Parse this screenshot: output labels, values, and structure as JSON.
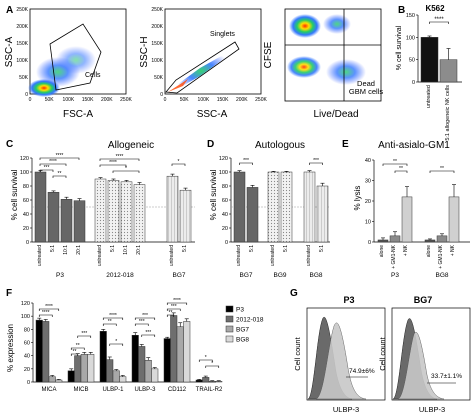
{
  "panels": {
    "A": {
      "letter": "A",
      "plot1": {
        "ylabel": "SSC-A",
        "xlabel": "FSC-A",
        "gate": "Cells",
        "yticks": [
          "250K",
          "200K",
          "150K",
          "100K",
          "50K",
          "0"
        ],
        "xticks": [
          "0",
          "50K",
          "100K",
          "150K",
          "200K",
          "250K"
        ]
      },
      "plot2": {
        "ylabel": "SSC-H",
        "xlabel": "SSC-A",
        "gate": "Singlets",
        "yticks": [
          "250K",
          "200K",
          "150K",
          "100K",
          "50K",
          "0"
        ],
        "xticks": [
          "0",
          "50K",
          "100K",
          "150K",
          "200K",
          "250K"
        ]
      },
      "plot3": {
        "ylabel": "CFSE",
        "xlabel": "Live/Dead",
        "gate": "Dead\nGBM cells"
      }
    },
    "B": {
      "letter": "B",
      "title": "K562",
      "ylabel": "% cell survival",
      "sig": "****",
      "yticks": [
        "0",
        "50",
        "100",
        "150"
      ],
      "categories": [
        "untreated",
        "5:1 allogeneic NK cells"
      ]
    },
    "C": {
      "letter": "C",
      "title": "Allogeneic",
      "ylabel": "% cell survival",
      "yticks": [
        "0",
        "20",
        "40",
        "60",
        "80",
        "100",
        "120"
      ],
      "groups": [
        "P3",
        "2012-018",
        "BG7"
      ],
      "xlabels": [
        "untreated",
        "5:1",
        "10:1",
        "20:1",
        "untreated",
        "5:1",
        "10:1",
        "20:1",
        "untreated",
        "5:1"
      ],
      "sigs": [
        "****",
        "****",
        "***",
        "**",
        "****",
        "****",
        "*",
        "*"
      ]
    },
    "D": {
      "letter": "D",
      "title": "Autologous",
      "ylabel": "% cell survival",
      "yticks": [
        "0",
        "20",
        "40",
        "60",
        "80",
        "100",
        "120"
      ],
      "groups": [
        "BG7",
        "BG9",
        "BG8"
      ],
      "xlabels": [
        "untreated",
        "5:1",
        "untreated",
        "5:1",
        "untreated",
        "5:1"
      ],
      "sigs": [
        "***",
        "***"
      ]
    },
    "E": {
      "letter": "E",
      "title": "Anti-asialo-GM1",
      "ylabel": "% lysis",
      "yticks": [
        "0",
        "10",
        "20",
        "30",
        "40"
      ],
      "groups": [
        "P3",
        "BG8"
      ],
      "xlabels": [
        "alone",
        "+ GM1-NK",
        "+ NK",
        "alone",
        "+ GM1-NK",
        "+ NK"
      ],
      "sigs": [
        "**",
        "**",
        "**"
      ]
    },
    "F": {
      "letter": "F",
      "ylabel": "% expression",
      "yticks": [
        "0",
        "20",
        "40",
        "60",
        "80",
        "100",
        "120"
      ],
      "markers": [
        "MICA",
        "MICB",
        "ULBP-1",
        "ULBP-3",
        "CD112",
        "TRAIL-R2"
      ],
      "legend": [
        "P3",
        "2012-018",
        "BG7",
        "BG8"
      ],
      "sigs": [
        "****",
        "****",
        "**",
        "**",
        "***",
        "****",
        "**",
        "*",
        "***",
        "***",
        "***",
        "****",
        "***",
        "**",
        "*",
        "*"
      ]
    },
    "G": {
      "letter": "G",
      "p3": {
        "title": "P3",
        "ylabel": "Cell count",
        "xlabel": "ULBP-3",
        "pct": "74.9±6%"
      },
      "bg7": {
        "title": "BG7",
        "ylabel": "Cell count",
        "xlabel": "ULBP-3",
        "pct": "33.7±1.1%"
      }
    }
  },
  "chart_data": [
    {
      "panel": "B",
      "type": "bar",
      "title": "K562",
      "ylabel": "% cell survival",
      "ylim": [
        0,
        150
      ],
      "categories": [
        "untreated",
        "5:1 allogeneic NK cells"
      ],
      "values": [
        100,
        50
      ],
      "errors": [
        3,
        25
      ],
      "colors": [
        "#111111",
        "#8c8c8c"
      ]
    },
    {
      "panel": "C",
      "type": "bar",
      "title": "Allogeneic",
      "ylabel": "% cell survival",
      "ylim": [
        0,
        120
      ],
      "categories": [
        "untreated",
        "5:1",
        "10:1",
        "20:1",
        "untreated",
        "5:1",
        "10:1",
        "20:1",
        "untreated",
        "5:1"
      ],
      "values": [
        100,
        71,
        61,
        59,
        90,
        88,
        86,
        82,
        94,
        74
      ],
      "errors": [
        2,
        2,
        3,
        3,
        2,
        2,
        2,
        3,
        3,
        3
      ],
      "patterns": [
        "dark",
        "dark",
        "dark",
        "dark",
        "dot",
        "dot",
        "dot",
        "dot",
        "line",
        "line"
      ]
    },
    {
      "panel": "D",
      "type": "bar",
      "title": "Autologous",
      "ylabel": "% cell survival",
      "ylim": [
        0,
        120
      ],
      "categories": [
        "untreated",
        "5:1",
        "untreated",
        "5:1",
        "untreated",
        "5:1"
      ],
      "values": [
        100,
        78,
        100,
        100,
        100,
        80
      ],
      "errors": [
        2,
        3,
        1,
        1,
        2,
        4
      ],
      "patterns": [
        "dark",
        "dark",
        "dot",
        "dot",
        "line",
        "line"
      ]
    },
    {
      "panel": "E",
      "type": "bar",
      "title": "Anti-asialo-GM1",
      "ylabel": "% lysis",
      "ylim": [
        0,
        40
      ],
      "categories": [
        "alone",
        "+ GM1-NK",
        "+ NK",
        "alone",
        "+ GM1-NK",
        "+ NK"
      ],
      "values": [
        1,
        3,
        22,
        1,
        3,
        22
      ],
      "errors": [
        1,
        2,
        5,
        0.5,
        1,
        6
      ],
      "colors": [
        "#555555",
        "#8a8a8a",
        "#d0d0d0",
        "#555555",
        "#8a8a8a",
        "#d0d0d0"
      ]
    },
    {
      "panel": "F",
      "type": "bar",
      "ylabel": "% expression",
      "ylim": [
        0,
        120
      ],
      "categories": [
        "MICA",
        "MICB",
        "ULBP-1",
        "ULBP-3",
        "CD112",
        "TRAIL-R2"
      ],
      "series": [
        {
          "name": "P3",
          "values": [
            94,
            17,
            77,
            71,
            66,
            3
          ],
          "errors": [
            3,
            3,
            3,
            4,
            2,
            1
          ]
        },
        {
          "name": "2012-018",
          "values": [
            92,
            40,
            34,
            54,
            101,
            7
          ],
          "errors": [
            3,
            3,
            4,
            3,
            4,
            2
          ]
        },
        {
          "name": "BG7",
          "values": [
            8,
            42,
            17,
            33,
            84,
            1
          ],
          "errors": [
            2,
            3,
            2,
            4,
            6,
            1
          ]
        },
        {
          "name": "BG8",
          "values": [
            3,
            42,
            8,
            20,
            92,
            1
          ],
          "errors": [
            1,
            3,
            2,
            2,
            4,
            1
          ]
        }
      ],
      "colors": [
        "#000000",
        "#6e6e6e",
        "#a8a8a8",
        "#d9d9d9"
      ]
    }
  ]
}
